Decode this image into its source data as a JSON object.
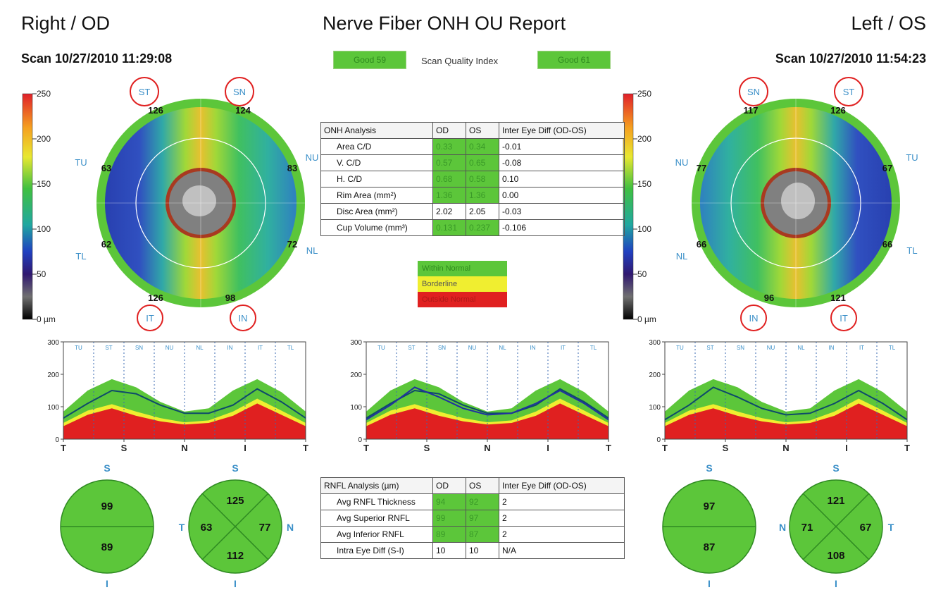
{
  "header": {
    "left_title": "Right / OD",
    "center_title": "Nerve Fiber ONH OU Report",
    "right_title": "Left / OS",
    "left_scan": "Scan 10/27/2010 11:29:08",
    "right_scan": "Scan 10/27/2010 11:54:23",
    "quality_left": "Good 59",
    "quality_label": "Scan Quality Index",
    "quality_right": "Good 61"
  },
  "colorbar": {
    "ticks": [
      "250",
      "200",
      "150",
      "100",
      "50",
      "0 µm"
    ],
    "colors": [
      "#e0202a",
      "#f5a020",
      "#e8e830",
      "#40c040",
      "#20a8a0",
      "#2040c0",
      "#301870",
      "#707070",
      "#000000"
    ]
  },
  "od_map": {
    "labels": {
      "st": "ST",
      "sn": "SN",
      "tu": "TU",
      "nu": "NU",
      "tl": "TL",
      "nl": "NL",
      "it": "IT",
      "in": "IN"
    },
    "values": {
      "st": "126",
      "sn": "124",
      "tu": "63",
      "nu": "83",
      "tl": "62",
      "nl": "72",
      "it": "126",
      "in": "98"
    }
  },
  "os_map": {
    "labels": {
      "sn": "SN",
      "st": "ST",
      "nu": "NU",
      "tu": "TU",
      "nl": "NL",
      "tl": "TL",
      "in": "IN",
      "it": "IT"
    },
    "values": {
      "sn": "117",
      "st": "126",
      "nu": "77",
      "tu": "67",
      "nl": "66",
      "tl": "66",
      "in": "96",
      "it": "121"
    }
  },
  "onh_table": {
    "headers": [
      "ONH Analysis",
      "OD",
      "OS",
      "Inter Eye Diff (OD-OS)"
    ],
    "rows": [
      [
        "Area C/D",
        "0.33",
        "0.34",
        "-0.01"
      ],
      [
        "V. C/D",
        "0.57",
        "0.65",
        "-0.08"
      ],
      [
        "H. C/D",
        "0.68",
        "0.58",
        "0.10"
      ],
      [
        "Rim Area (mm²)",
        "1.36",
        "1.36",
        "0.00"
      ],
      [
        "Disc Area (mm²)",
        "2.02",
        "2.05",
        "-0.03"
      ],
      [
        "Cup Volume (mm³)",
        "0.131",
        "0.237",
        "-0.106"
      ]
    ]
  },
  "legend": {
    "within": "Within Normal",
    "borderline": "Borderline",
    "outside": "Outside Normal",
    "colors": {
      "within": "#5cc63a",
      "borderline": "#f0ee30",
      "outside": "#e02020"
    }
  },
  "rnfl_table": {
    "headers": [
      "RNFL Analysis (µm)",
      "OD",
      "OS",
      "Inter Eye Diff (OD-OS)"
    ],
    "rows": [
      [
        "Avg RNFL Thickness",
        "94",
        "92",
        "2"
      ],
      [
        "Avg Superior RNFL",
        "99",
        "97",
        "2"
      ],
      [
        "Avg Inferior RNFL",
        "89",
        "87",
        "2"
      ],
      [
        "Intra Eye Diff  (S-I)",
        "10",
        "10",
        "N/A"
      ]
    ]
  },
  "od_halves": {
    "top_label": "S",
    "bottom_label": "I",
    "superior": "99",
    "inferior": "89"
  },
  "od_quadrants": {
    "top_label": "S",
    "bottom_label": "I",
    "left_label": "T",
    "right_label": "N",
    "s": "125",
    "t": "63",
    "n": "77",
    "i": "112"
  },
  "os_halves": {
    "top_label": "S",
    "bottom_label": "I",
    "superior": "97",
    "inferior": "87"
  },
  "os_quadrants": {
    "top_label": "S",
    "bottom_label": "I",
    "left_label": "N",
    "right_label": "T",
    "s": "121",
    "n": "71",
    "t": "67",
    "i": "108"
  },
  "chart_data": [
    {
      "type": "area",
      "name": "od_tsnit",
      "ylim": [
        0,
        300
      ],
      "yticks": [
        "0",
        "100",
        "200",
        "300"
      ],
      "xticks": [
        "T",
        "S",
        "N",
        "I",
        "T"
      ],
      "sectors": [
        "TU",
        "ST",
        "SN",
        "NU",
        "NL",
        "IN",
        "IT",
        "TL"
      ],
      "x": [
        0,
        10,
        20,
        30,
        40,
        50,
        60,
        70,
        80,
        90,
        100
      ],
      "series": [
        {
          "values": [
            65,
            110,
            150,
            140,
            105,
            80,
            80,
            105,
            155,
            115,
            65
          ]
        }
      ],
      "bands": {
        "red_top": [
          40,
          75,
          95,
          72,
          55,
          45,
          50,
          72,
          110,
          75,
          40
        ],
        "yellow_top": [
          50,
          88,
          108,
          85,
          65,
          52,
          58,
          85,
          125,
          88,
          50
        ],
        "green_top": [
          85,
          150,
          185,
          160,
          115,
          85,
          95,
          150,
          185,
          145,
          85
        ]
      },
      "colors": {
        "red": "#e02020",
        "yellow": "#f0ee30",
        "green": "#5cc63a",
        "line": "#0e4a6a"
      }
    },
    {
      "type": "area",
      "name": "ou_tsnit",
      "ylim": [
        0,
        300
      ],
      "yticks": [
        "0",
        "100",
        "200",
        "300"
      ],
      "xticks": [
        "T",
        "S",
        "N",
        "I",
        "T"
      ],
      "sectors": [
        "TU",
        "ST",
        "SN",
        "NU",
        "NL",
        "IN",
        "IT",
        "TL"
      ],
      "x": [
        0,
        10,
        20,
        30,
        40,
        50,
        60,
        70,
        80,
        90,
        100
      ],
      "series": [
        {
          "values": [
            65,
            110,
            150,
            140,
            105,
            80,
            80,
            105,
            155,
            115,
            65
          ]
        },
        {
          "values": [
            60,
            105,
            160,
            130,
            95,
            75,
            80,
            110,
            150,
            110,
            60
          ]
        }
      ],
      "bands": {
        "red_top": [
          40,
          75,
          95,
          72,
          55,
          45,
          50,
          72,
          110,
          75,
          40
        ],
        "yellow_top": [
          50,
          88,
          108,
          85,
          65,
          52,
          58,
          85,
          125,
          88,
          50
        ],
        "green_top": [
          85,
          150,
          185,
          160,
          115,
          85,
          95,
          150,
          185,
          145,
          85
        ]
      },
      "colors": {
        "red": "#e02020",
        "yellow": "#f0ee30",
        "green": "#5cc63a",
        "line": "#0e4a6a",
        "line2": "#2030a0"
      }
    },
    {
      "type": "area",
      "name": "os_tsnit",
      "ylim": [
        0,
        300
      ],
      "yticks": [
        "0",
        "100",
        "200",
        "300"
      ],
      "xticks": [
        "T",
        "S",
        "N",
        "I",
        "T"
      ],
      "sectors": [
        "TU",
        "ST",
        "SN",
        "NU",
        "NL",
        "IN",
        "IT",
        "TL"
      ],
      "x": [
        0,
        10,
        20,
        30,
        40,
        50,
        60,
        70,
        80,
        90,
        100
      ],
      "series": [
        {
          "values": [
            60,
            105,
            160,
            130,
            95,
            75,
            80,
            110,
            150,
            110,
            60
          ]
        }
      ],
      "bands": {
        "red_top": [
          40,
          75,
          95,
          72,
          55,
          45,
          50,
          72,
          110,
          75,
          40
        ],
        "yellow_top": [
          50,
          88,
          108,
          85,
          65,
          52,
          58,
          85,
          125,
          88,
          50
        ],
        "green_top": [
          85,
          150,
          185,
          160,
          115,
          85,
          95,
          150,
          185,
          145,
          85
        ]
      },
      "colors": {
        "red": "#e02020",
        "yellow": "#f0ee30",
        "green": "#5cc63a",
        "line": "#0e4a6a"
      }
    }
  ]
}
